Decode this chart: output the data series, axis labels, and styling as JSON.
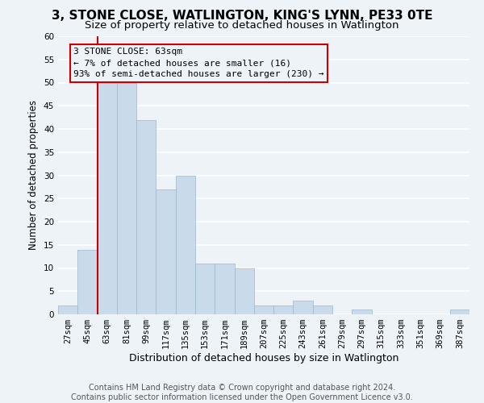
{
  "title": "3, STONE CLOSE, WATLINGTON, KING'S LYNN, PE33 0TE",
  "subtitle": "Size of property relative to detached houses in Watlington",
  "xlabel": "Distribution of detached houses by size in Watlington",
  "ylabel": "Number of detached properties",
  "categories": [
    "27sqm",
    "45sqm",
    "63sqm",
    "81sqm",
    "99sqm",
    "117sqm",
    "135sqm",
    "153sqm",
    "171sqm",
    "189sqm",
    "207sqm",
    "225sqm",
    "243sqm",
    "261sqm",
    "279sqm",
    "297sqm",
    "315sqm",
    "333sqm",
    "351sqm",
    "369sqm",
    "387sqm"
  ],
  "values": [
    2,
    14,
    50,
    50,
    42,
    27,
    30,
    11,
    11,
    10,
    2,
    2,
    3,
    2,
    0,
    1,
    0,
    0,
    0,
    0,
    1
  ],
  "bar_color": "#c9daea",
  "bar_edge_color": "#9ab8cc",
  "vline_index": 2,
  "vline_color": "#cc0000",
  "annotation_text": "3 STONE CLOSE: 63sqm\n← 7% of detached houses are smaller (16)\n93% of semi-detached houses are larger (230) →",
  "annotation_edge_color": "#cc0000",
  "footer_line1": "Contains HM Land Registry data © Crown copyright and database right 2024.",
  "footer_line2": "Contains public sector information licensed under the Open Government Licence v3.0.",
  "ylim_max": 60,
  "bg_color": "#eef3f8",
  "grid_color": "#ffffff",
  "title_fontsize": 11,
  "subtitle_fontsize": 9.5,
  "ylabel_fontsize": 8.5,
  "xlabel_fontsize": 9,
  "tick_fontsize": 7.5,
  "annot_fontsize": 8,
  "footer_fontsize": 7
}
